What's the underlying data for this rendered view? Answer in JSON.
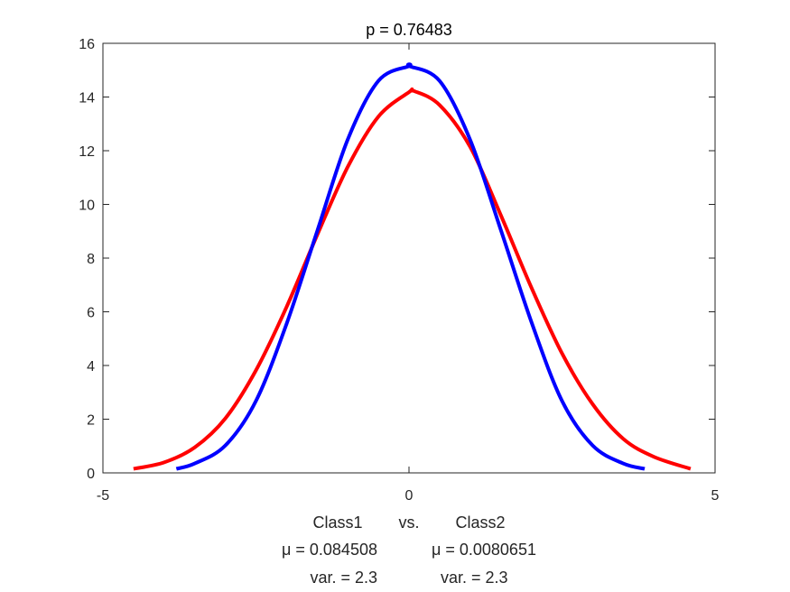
{
  "chart_data": {
    "type": "line",
    "title": "p = 0.76483",
    "xlim": [
      -5,
      5
    ],
    "ylim": [
      0,
      16
    ],
    "xticks": [
      -5,
      0,
      5
    ],
    "yticks": [
      0,
      2,
      4,
      6,
      8,
      10,
      12,
      14,
      16
    ],
    "grid": false,
    "legend": "none",
    "xlabel_lines": [
      "Class1        vs.        Class2",
      "μ = 0.084508            μ = 0.0080651",
      "var. = 2.3              var. = 2.3"
    ],
    "series": [
      {
        "color": "#ff0000",
        "x": [
          -4.5,
          -4.0,
          -3.5,
          -3.0,
          -2.5,
          -2.0,
          -1.5,
          -1.0,
          -0.5,
          0.0,
          0.085,
          0.5,
          1.0,
          1.5,
          2.0,
          2.5,
          3.0,
          3.5,
          4.0,
          4.6
        ],
        "y": [
          0.15,
          0.39,
          0.95,
          2.03,
          3.82,
          6.18,
          8.86,
          11.4,
          13.27,
          14.18,
          14.22,
          13.7,
          12.14,
          9.6,
          6.9,
          4.45,
          2.56,
          1.27,
          0.6,
          0.15
        ]
      },
      {
        "color": "#0000ff",
        "x": [
          -3.8,
          -3.5,
          -3.0,
          -2.5,
          -2.0,
          -1.5,
          -1.0,
          -0.5,
          0.0,
          0.008,
          0.5,
          1.0,
          1.5,
          2.0,
          2.5,
          3.0,
          3.5,
          3.85
        ],
        "y": [
          0.15,
          0.35,
          1.02,
          2.68,
          5.55,
          9.0,
          12.42,
          14.6,
          15.15,
          15.15,
          14.6,
          12.4,
          9.05,
          5.62,
          2.68,
          1.02,
          0.35,
          0.15
        ]
      }
    ]
  }
}
